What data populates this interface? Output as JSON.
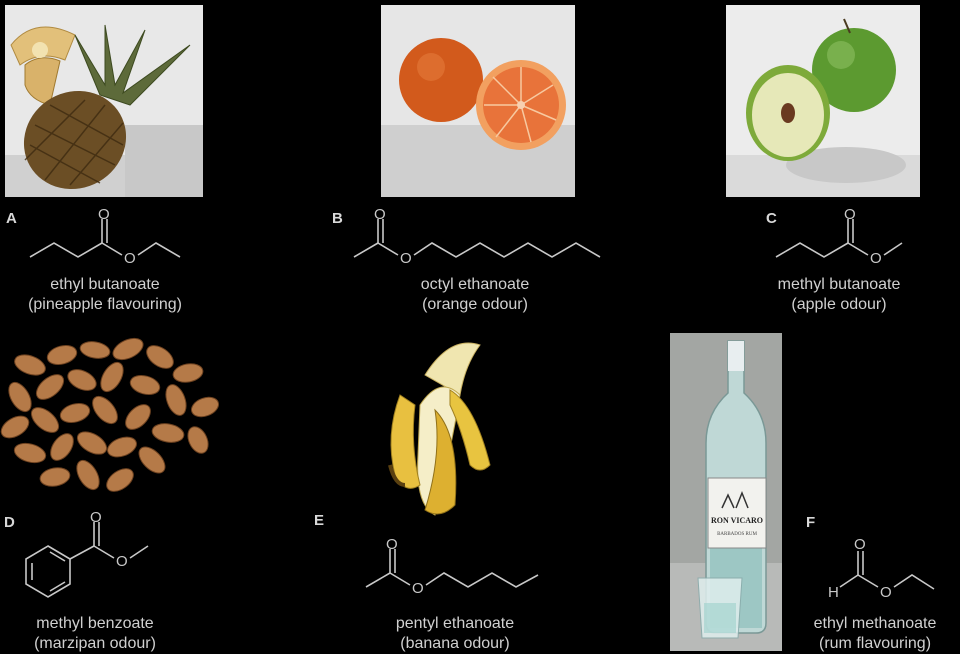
{
  "panels": [
    {
      "letter": "A",
      "name": "ethyl butanoate",
      "use": "(pineapple flavouring)",
      "photo": "pineapple"
    },
    {
      "letter": "B",
      "name": "octyl ethanoate",
      "use": "(orange odour)",
      "photo": "orange"
    },
    {
      "letter": "C",
      "name": "methyl butanoate",
      "use": "(apple odour)",
      "photo": "apple"
    },
    {
      "letter": "D",
      "name": "methyl benzoate",
      "use": "(marzipan odour)",
      "photo": "almonds"
    },
    {
      "letter": "E",
      "name": "pentyl ethanoate",
      "use": "(banana odour)",
      "photo": "banana"
    },
    {
      "letter": "F",
      "name": "ethyl methanoate",
      "use": "(rum flavouring)",
      "photo": "rum-bottle"
    }
  ],
  "atoms": {
    "oxygen": "O",
    "hydrogen": "H"
  },
  "photo_labels": {
    "rum_brand": "RON VICARO",
    "rum_type": "BARBADOS RUM"
  }
}
